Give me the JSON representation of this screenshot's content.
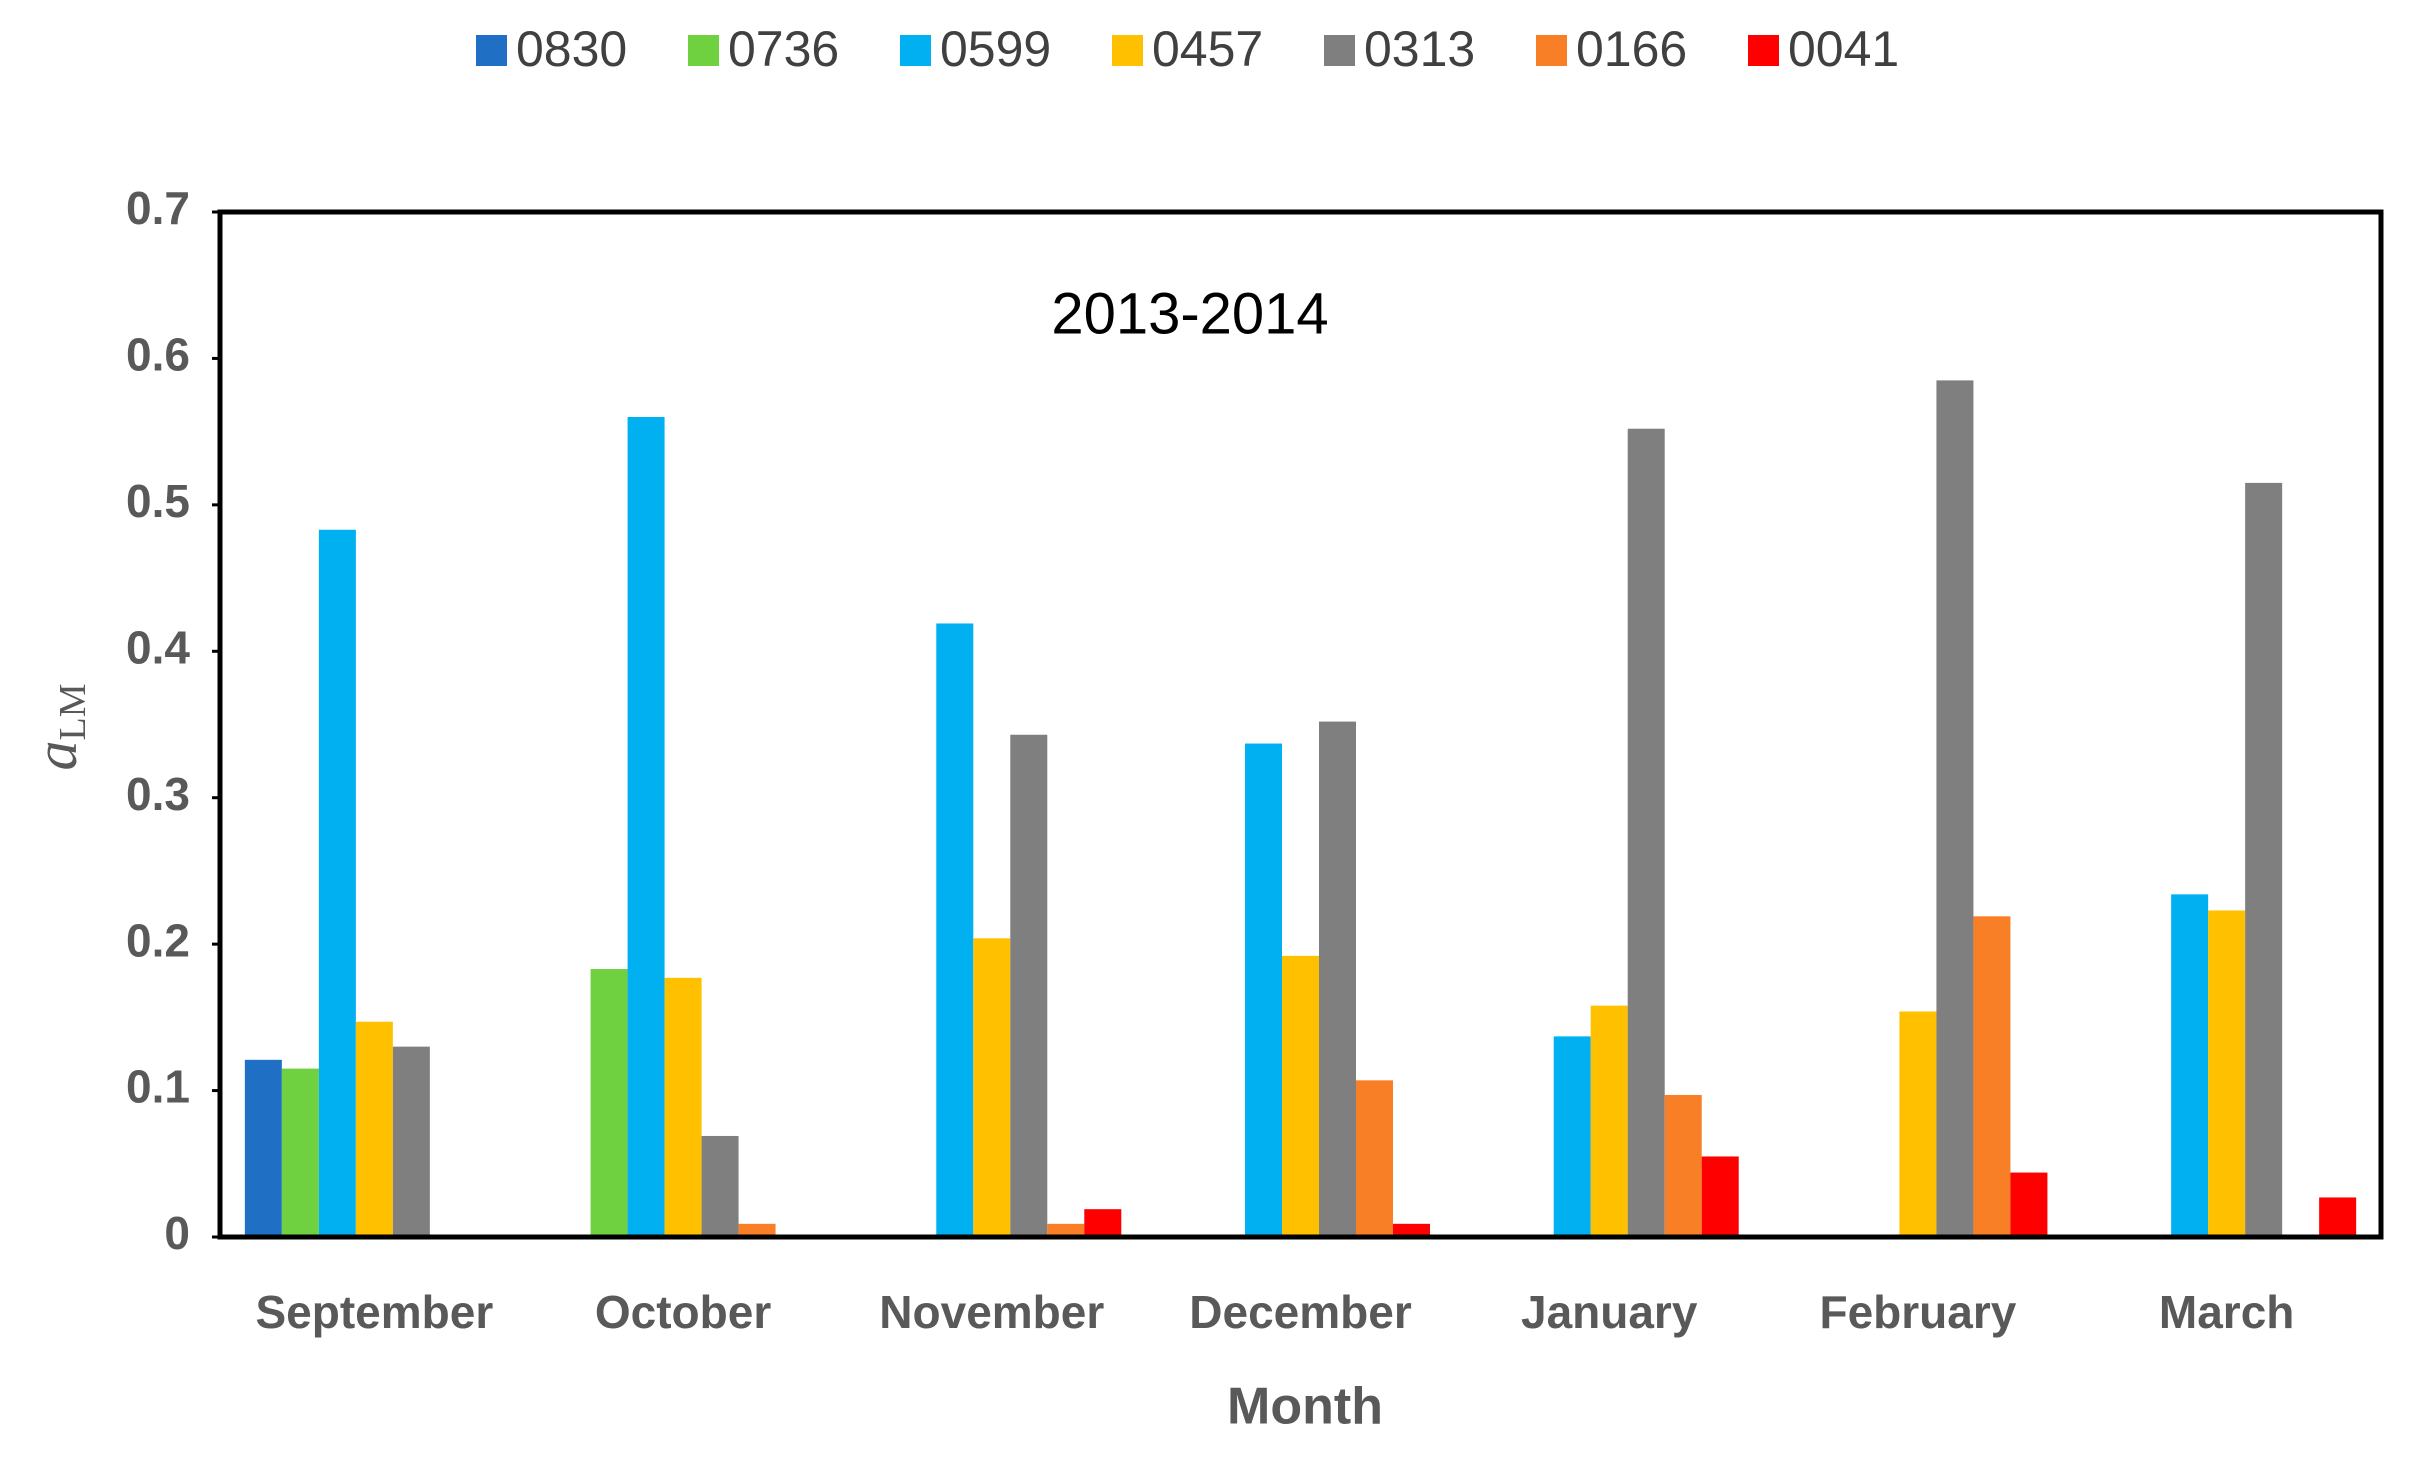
{
  "chart_data": {
    "type": "bar",
    "annotation": "2013-2014",
    "xlabel": "Month",
    "ylabel": "a",
    "ylabel_sub": "LM",
    "categories": [
      "September",
      "October",
      "November",
      "December",
      "January",
      "February",
      "March"
    ],
    "series": [
      {
        "name": "0830",
        "color": "#1f6fc5",
        "values": [
          0.121,
          null,
          null,
          null,
          null,
          null,
          null
        ]
      },
      {
        "name": "0736",
        "color": "#6fd13f",
        "values": [
          0.115,
          0.183,
          null,
          null,
          null,
          null,
          null
        ]
      },
      {
        "name": "0599",
        "color": "#00b0f0",
        "values": [
          0.483,
          0.56,
          0.419,
          0.337,
          0.137,
          null,
          0.234
        ]
      },
      {
        "name": "0457",
        "color": "#ffc000",
        "values": [
          0.147,
          0.177,
          0.204,
          0.192,
          0.158,
          0.154,
          0.223
        ]
      },
      {
        "name": "0313",
        "color": "#7f7f7f",
        "values": [
          0.13,
          0.069,
          0.343,
          0.352,
          0.552,
          0.585,
          0.515
        ]
      },
      {
        "name": "0166",
        "color": "#f97f27",
        "values": [
          null,
          0.009,
          0.009,
          0.107,
          0.097,
          0.219,
          null
        ]
      },
      {
        "name": "0041",
        "color": "#ff0000",
        "values": [
          null,
          null,
          0.019,
          0.009,
          0.055,
          0.044,
          0.027
        ]
      }
    ],
    "ylim": [
      0,
      0.7
    ],
    "yticks": [
      0,
      0.1,
      0.2,
      0.3,
      0.4,
      0.5,
      0.6,
      0.7
    ],
    "grid": false,
    "legend": "top"
  }
}
